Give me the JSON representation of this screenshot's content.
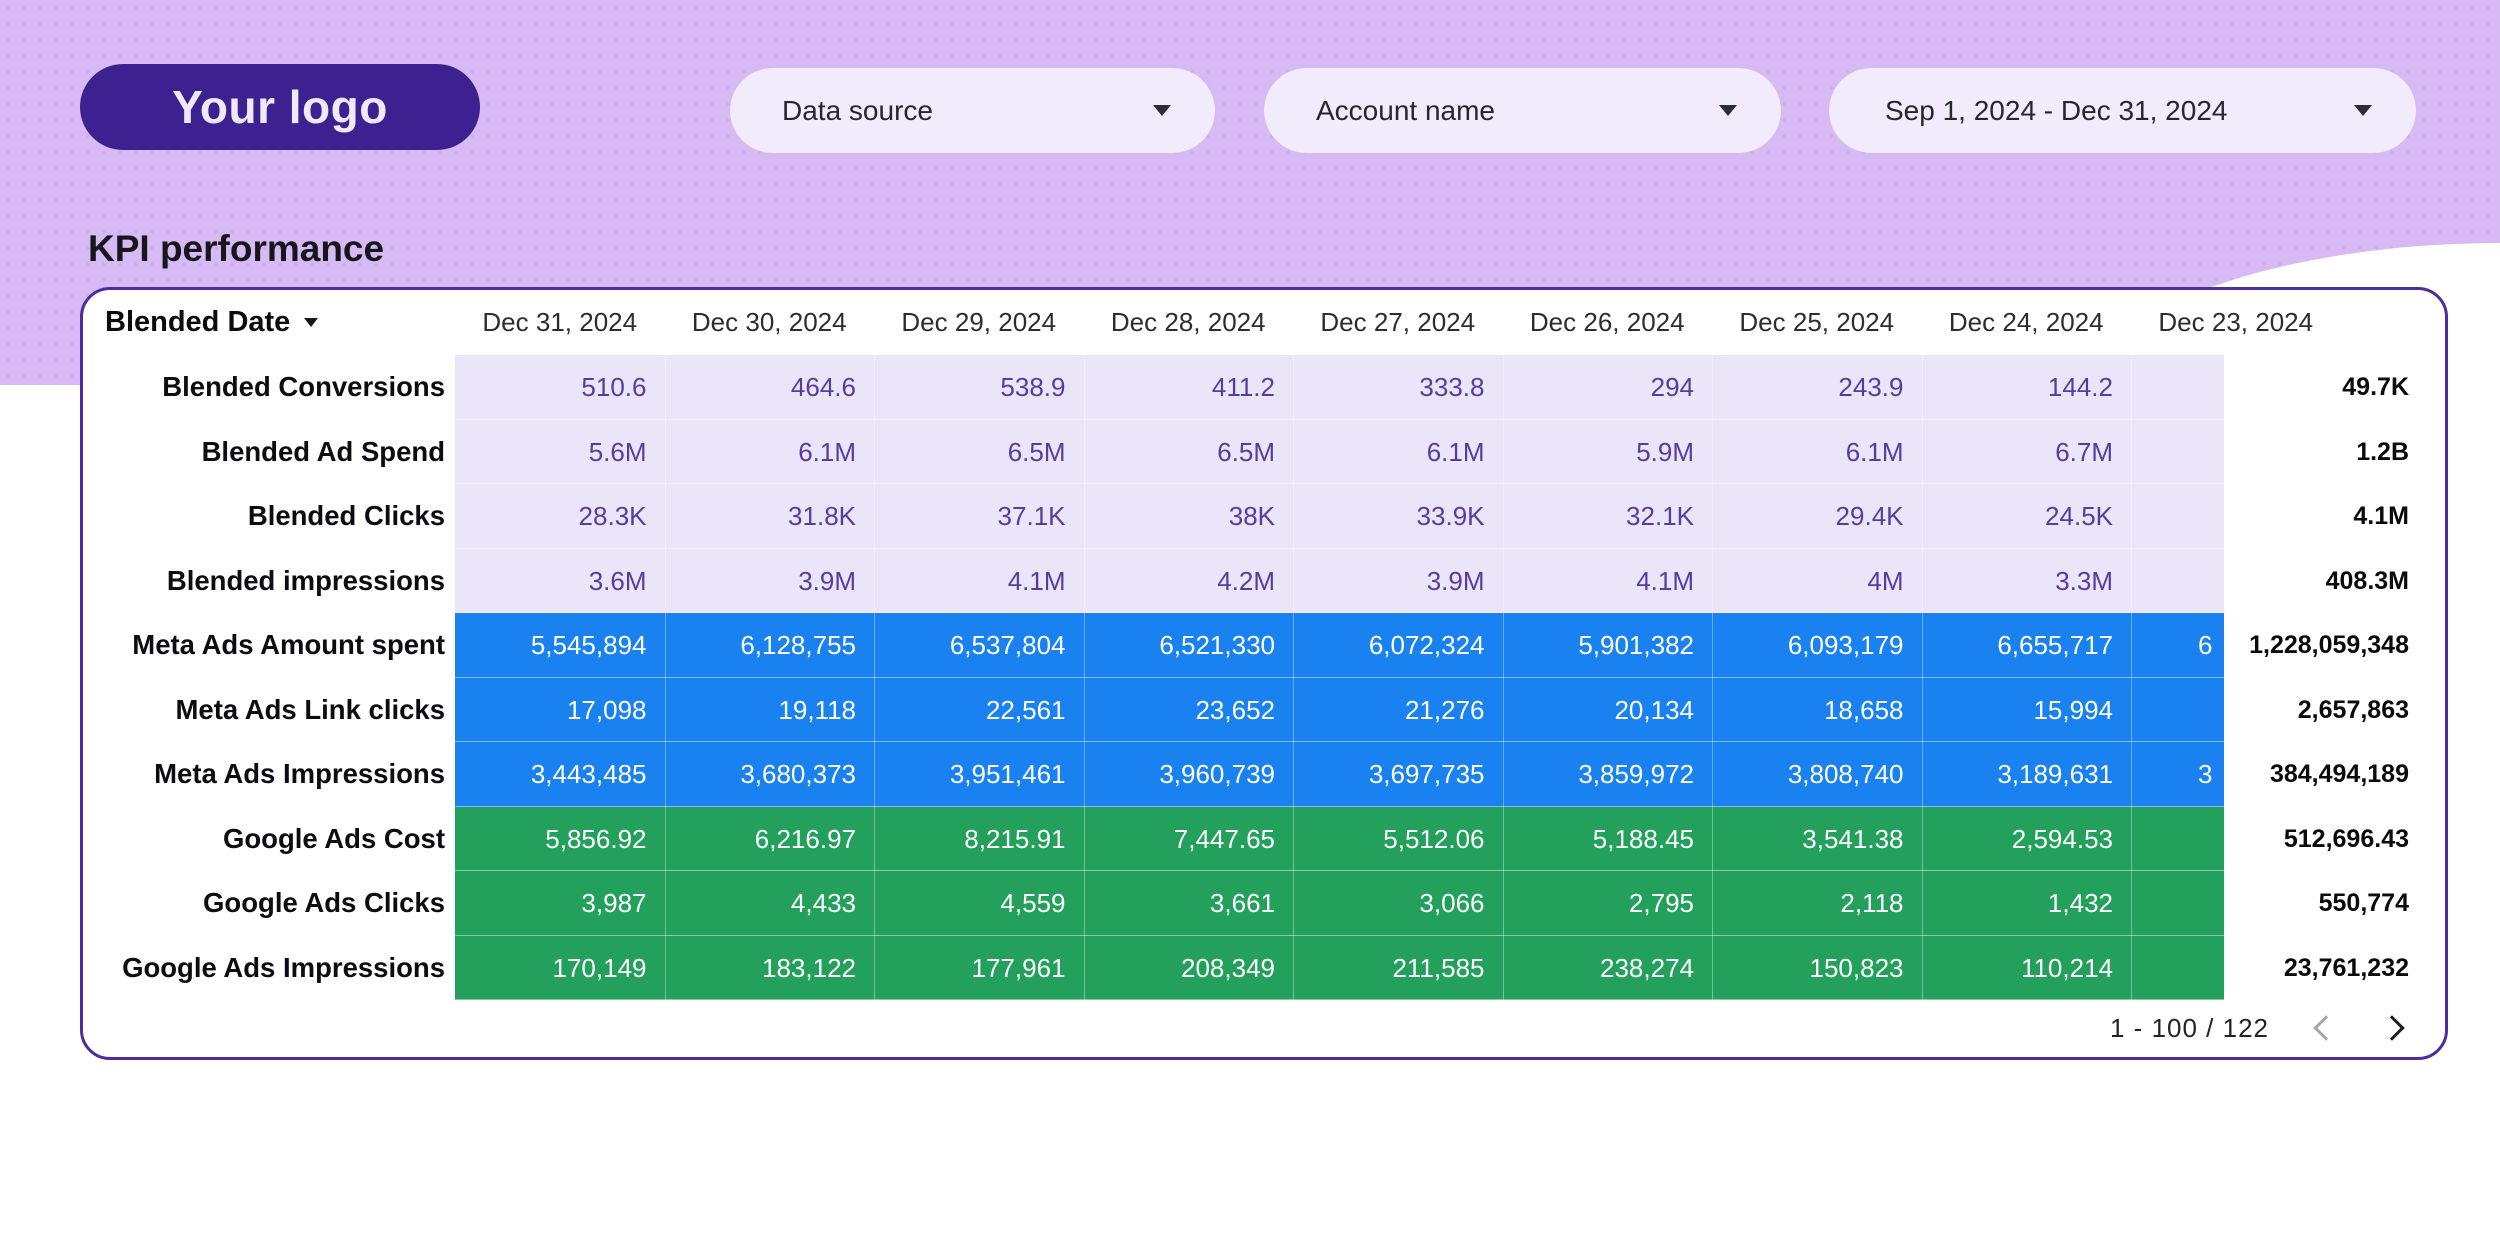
{
  "logo": {
    "text": "Your logo"
  },
  "filters": {
    "data_source": {
      "label": "Data source"
    },
    "account_name": {
      "label": "Account name"
    },
    "date_range": {
      "label": "Sep 1, 2024 - Dec 31, 2024"
    }
  },
  "section_title": "KPI performance",
  "icons": {
    "dropdown": "chevron-down",
    "prev": "chevron-left",
    "next": "chevron-right"
  },
  "colors": {
    "header_background": "#d7b9f3",
    "logo_purple": "#3e2190",
    "card_border": "#4b2da0",
    "blended_row_bg": "#ebe5f9",
    "blended_value_text": "#563ca0",
    "meta_blue": "#1a82f0",
    "google_green": "#22a05c"
  },
  "table": {
    "date_column_header": "Blended Date",
    "columns": [
      "Dec 31, 2024",
      "Dec 30, 2024",
      "Dec 29, 2024",
      "Dec 28, 2024",
      "Dec 27, 2024",
      "Dec 26, 2024",
      "Dec 25, 2024",
      "Dec 24, 2024",
      "Dec 23, 2024"
    ],
    "rows": [
      {
        "label": "Blended Conversions",
        "group": "blended",
        "values": [
          "510.6",
          "464.6",
          "538.9",
          "411.2",
          "333.8",
          "294",
          "243.9",
          "144.2"
        ],
        "clipped_value": "",
        "total": "49.7K"
      },
      {
        "label": "Blended Ad Spend",
        "group": "blended",
        "values": [
          "5.6M",
          "6.1M",
          "6.5M",
          "6.5M",
          "6.1M",
          "5.9M",
          "6.1M",
          "6.7M"
        ],
        "clipped_value": "",
        "total": "1.2B"
      },
      {
        "label": "Blended Clicks",
        "group": "blended",
        "values": [
          "28.3K",
          "31.8K",
          "37.1K",
          "38K",
          "33.9K",
          "32.1K",
          "29.4K",
          "24.5K"
        ],
        "clipped_value": "",
        "total": "4.1M"
      },
      {
        "label": "Blended impressions",
        "group": "blended",
        "values": [
          "3.6M",
          "3.9M",
          "4.1M",
          "4.2M",
          "3.9M",
          "4.1M",
          "4M",
          "3.3M"
        ],
        "clipped_value": "",
        "total": "408.3M"
      },
      {
        "label": "Meta Ads Amount spent",
        "group": "meta",
        "values": [
          "5,545,894",
          "6,128,755",
          "6,537,804",
          "6,521,330",
          "6,072,324",
          "5,901,382",
          "6,093,179",
          "6,655,717"
        ],
        "clipped_value": "6",
        "total": "1,228,059,348"
      },
      {
        "label": "Meta Ads Link clicks",
        "group": "meta",
        "values": [
          "17,098",
          "19,118",
          "22,561",
          "23,652",
          "21,276",
          "20,134",
          "18,658",
          "15,994"
        ],
        "clipped_value": "",
        "total": "2,657,863"
      },
      {
        "label": "Meta Ads Impressions",
        "group": "meta",
        "values": [
          "3,443,485",
          "3,680,373",
          "3,951,461",
          "3,960,739",
          "3,697,735",
          "3,859,972",
          "3,808,740",
          "3,189,631"
        ],
        "clipped_value": "3",
        "total": "384,494,189"
      },
      {
        "label": "Google Ads Cost",
        "group": "google",
        "values": [
          "5,856.92",
          "6,216.97",
          "8,215.91",
          "7,447.65",
          "5,512.06",
          "5,188.45",
          "3,541.38",
          "2,594.53"
        ],
        "clipped_value": "",
        "total": "512,696.43"
      },
      {
        "label": "Google Ads Clicks",
        "group": "google",
        "values": [
          "3,987",
          "4,433",
          "4,559",
          "3,661",
          "3,066",
          "2,795",
          "2,118",
          "1,432"
        ],
        "clipped_value": "",
        "total": "550,774"
      },
      {
        "label": "Google Ads Impressions",
        "group": "google",
        "values": [
          "170,149",
          "183,122",
          "177,961",
          "208,349",
          "211,585",
          "238,274",
          "150,823",
          "110,214"
        ],
        "clipped_value": "",
        "total": "23,761,232"
      }
    ],
    "pagination": {
      "range": "1 - 100 / 122"
    }
  }
}
